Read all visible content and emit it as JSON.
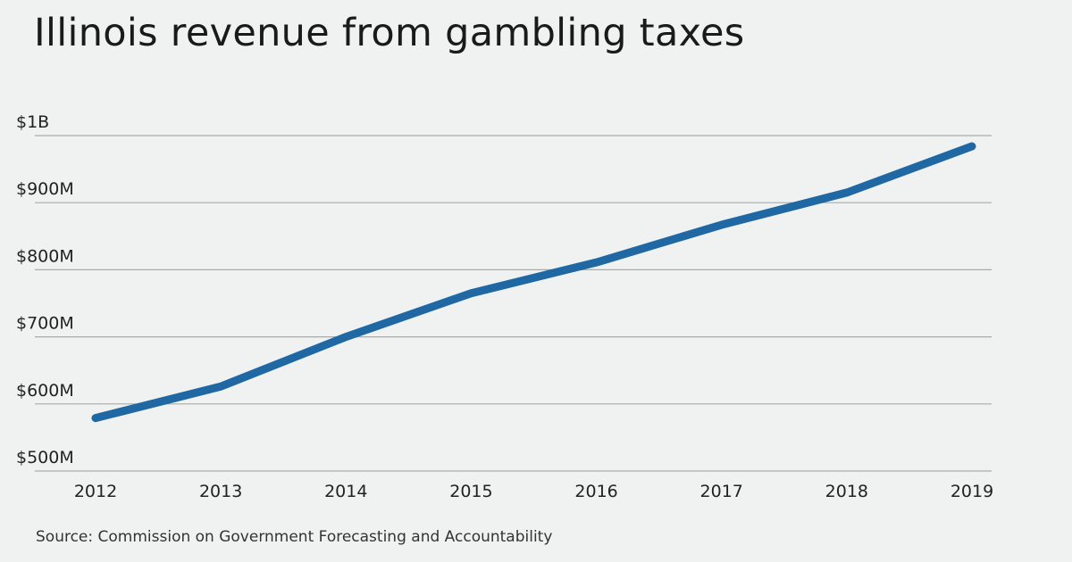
{
  "chart_data": {
    "type": "line",
    "title": "Illinois revenue from gambling taxes",
    "xlabel": "",
    "ylabel": "",
    "x": [
      2012,
      2013,
      2014,
      2015,
      2016,
      2017,
      2018,
      2019
    ],
    "x_tick_labels": [
      "2012",
      "2013",
      "2014",
      "2015",
      "2016",
      "2017",
      "2018",
      "2019"
    ],
    "series": [
      {
        "values": [
          579,
          626,
          700,
          765,
          811,
          867,
          915,
          984
        ],
        "unit": "millions USD",
        "color": "#1f68a3"
      }
    ],
    "ylim": [
      500,
      1000
    ],
    "y_ticks": [
      500,
      600,
      700,
      800,
      900,
      1000
    ],
    "y_tick_labels": [
      "$500M",
      "$600M",
      "$700M",
      "$800M",
      "$900M",
      "$1B"
    ],
    "grid": "horizontal",
    "legend": "none",
    "source": "Source: Commission on Government Forecasting and Accountability"
  }
}
